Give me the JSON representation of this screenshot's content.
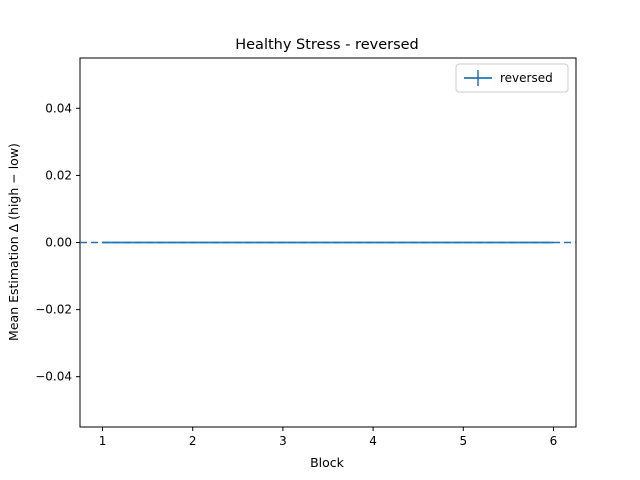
{
  "chart_data": {
    "type": "line",
    "title": "Healthy Stress - reversed",
    "xlabel": "Block",
    "ylabel": "Mean Estimation Δ (high − low)",
    "xlim": [
      0.75,
      6.25
    ],
    "ylim": [
      -0.055,
      0.055
    ],
    "x_ticks": [
      1,
      2,
      3,
      4,
      5,
      6
    ],
    "y_ticks": [
      -0.04,
      -0.02,
      0.0,
      0.02,
      0.04
    ],
    "y_tick_labels": [
      "−0.04",
      "−0.02",
      "0.00",
      "0.02",
      "0.04"
    ],
    "grid": false,
    "legend_position": "top-right",
    "reference_line": {
      "y": 0,
      "style": "dashed",
      "color": "#1f77b4"
    },
    "series": [
      {
        "name": "reversed",
        "color": "#1f77b4",
        "x": [
          1,
          2,
          3,
          4,
          5,
          6
        ],
        "y": [
          0,
          0,
          0,
          0,
          0,
          0
        ],
        "yerr": [
          0,
          0,
          0,
          0,
          0,
          0
        ]
      }
    ]
  }
}
